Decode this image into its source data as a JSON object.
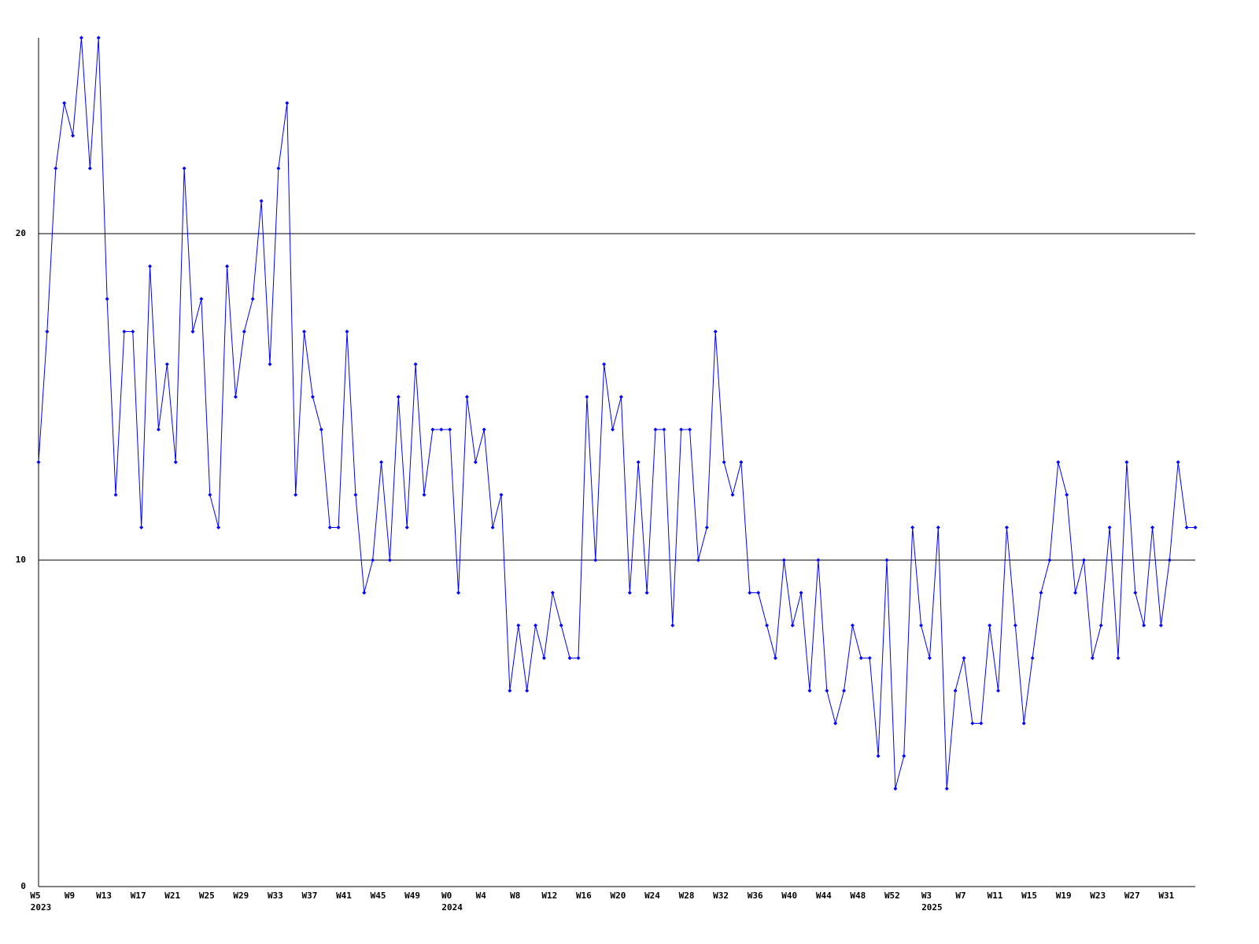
{
  "chart_data": {
    "type": "line",
    "color": "#0000ff",
    "grid": true,
    "ylim": [
      0,
      26
    ],
    "yticks": [
      0,
      10,
      20
    ],
    "categories": [
      "W5",
      null,
      null,
      null,
      "W9",
      null,
      null,
      null,
      "W13",
      null,
      null,
      null,
      "W17",
      null,
      null,
      null,
      "W21",
      null,
      null,
      null,
      "W25",
      null,
      null,
      null,
      "W29",
      null,
      null,
      null,
      "W33",
      null,
      null,
      null,
      "W37",
      null,
      null,
      null,
      "W41",
      null,
      null,
      null,
      "W45",
      null,
      null,
      null,
      "W49",
      null,
      null,
      null,
      "W0",
      null,
      null,
      null,
      "W4",
      null,
      null,
      null,
      "W8",
      null,
      null,
      null,
      "W12",
      null,
      null,
      null,
      "W16",
      null,
      null,
      null,
      "W20",
      null,
      null,
      null,
      "W24",
      null,
      null,
      null,
      "W28",
      null,
      null,
      null,
      "W32",
      null,
      null,
      null,
      "W36",
      null,
      null,
      null,
      "W40",
      null,
      null,
      null,
      "W44",
      null,
      null,
      null,
      "W48",
      null,
      null,
      null,
      "W52",
      null,
      null,
      null,
      "W3",
      null,
      null,
      null,
      "W7",
      null,
      null,
      null,
      "W11",
      null,
      null,
      null,
      "W15",
      null,
      null,
      null,
      "W19",
      null,
      null,
      null,
      "W23",
      null,
      null,
      null,
      "W27",
      null,
      null,
      null,
      "W31",
      null,
      null,
      null
    ],
    "x_year_labels": [
      "2023",
      null,
      null,
      null,
      null,
      null,
      null,
      null,
      null,
      null,
      null,
      null,
      null,
      null,
      null,
      null,
      null,
      null,
      null,
      null,
      null,
      null,
      null,
      null,
      null,
      null,
      null,
      null,
      null,
      null,
      null,
      null,
      null,
      null,
      null,
      null,
      null,
      null,
      null,
      null,
      null,
      null,
      null,
      null,
      null,
      null,
      null,
      null,
      "2024",
      null,
      null,
      null,
      null,
      null,
      null,
      null,
      null,
      null,
      null,
      null,
      null,
      null,
      null,
      null,
      null,
      null,
      null,
      null,
      null,
      null,
      null,
      null,
      null,
      null,
      null,
      null,
      null,
      null,
      null,
      null,
      null,
      null,
      null,
      null,
      null,
      null,
      null,
      null,
      null,
      null,
      null,
      null,
      null,
      null,
      null,
      null,
      null,
      null,
      null,
      null,
      null,
      null,
      null,
      null,
      "2025",
      null,
      null,
      null,
      null,
      null,
      null,
      null,
      null,
      null,
      null,
      null,
      null,
      null,
      null,
      null,
      null,
      null,
      null,
      null,
      null,
      null,
      null,
      null,
      null,
      null,
      null,
      null,
      null,
      null,
      null,
      null
    ],
    "values": [
      13,
      17,
      22,
      24,
      23,
      26,
      22,
      26,
      18,
      12,
      17,
      17,
      11,
      19,
      14,
      16,
      13,
      22,
      17,
      18,
      12,
      11,
      19,
      15,
      17,
      18,
      21,
      16,
      22,
      24,
      12,
      17,
      15,
      14,
      11,
      11,
      17,
      12,
      9,
      10,
      13,
      10,
      15,
      11,
      16,
      12,
      14,
      14,
      14,
      9,
      15,
      13,
      14,
      11,
      12,
      6,
      8,
      6,
      8,
      7,
      9,
      8,
      7,
      7,
      15,
      10,
      16,
      14,
      15,
      9,
      13,
      9,
      14,
      14,
      8,
      14,
      14,
      10,
      11,
      17,
      13,
      12,
      13,
      9,
      9,
      8,
      7,
      10,
      8,
      9,
      6,
      10,
      6,
      5,
      6,
      8,
      7,
      7,
      4,
      10,
      3,
      4,
      11,
      8,
      7,
      11,
      3,
      6,
      7,
      5,
      5,
      8,
      6,
      11,
      8,
      5,
      7,
      9,
      10,
      13,
      12,
      9,
      10,
      7,
      8,
      11,
      7,
      13,
      9,
      8,
      11,
      8,
      10,
      13,
      11,
      11
    ]
  }
}
